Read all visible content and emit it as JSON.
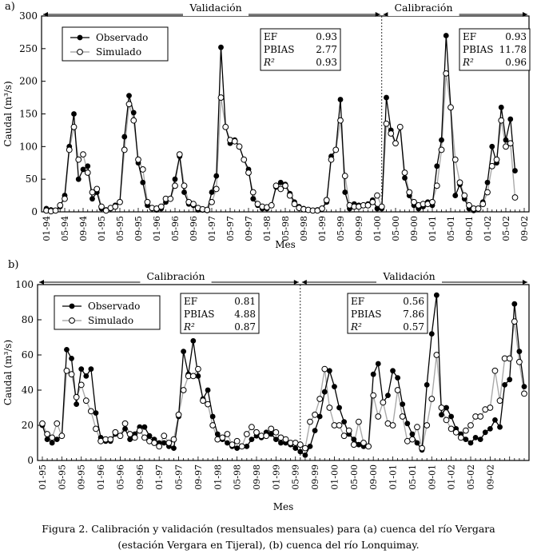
{
  "figure": {
    "caption_line1": "Figura 2. Calibración y validación (resultados mensuales) para (a) cuenca del río Vergara",
    "caption_line2": "(estación Vergara en Tijeral), (b) cuenca del río Lonquimay."
  },
  "chart_data": [
    {
      "type": "line",
      "panel_label": "a)",
      "xlabel": "Mes",
      "ylabel": "Caudal (m³/s)",
      "ylim": [
        0,
        300
      ],
      "yticks": [
        0,
        50,
        100,
        150,
        200,
        250,
        300
      ],
      "xticks": [
        "01-94",
        "05-94",
        "09-94",
        "01-95",
        "05-95",
        "09-95",
        "01-96",
        "05-96",
        "09-96",
        "01-97",
        "05-97",
        "09-97",
        "01-98",
        "05-98",
        "09-98",
        "01-99",
        "05-99",
        "09-99",
        "01-00",
        "05-00",
        "09-00",
        "01-01",
        "05-01",
        "09-01",
        "01-02",
        "05-02",
        "09-02"
      ],
      "periods": [
        {
          "label": "Validación",
          "from": 0,
          "to": 73
        },
        {
          "label": "Calibración",
          "from": 73,
          "to": 105
        }
      ],
      "stats": [
        {
          "rows": [
            [
              "EF",
              "0.93"
            ],
            [
              "PBIAS",
              "2.77"
            ],
            [
              "R²",
              "0.93"
            ]
          ],
          "anchor": "validation"
        },
        {
          "rows": [
            [
              "EF",
              "0.93"
            ],
            [
              "PBIAS",
              "11.78"
            ],
            [
              "R²",
              "0.96"
            ]
          ],
          "anchor": "calibration"
        }
      ],
      "series": [
        {
          "name": "Observado",
          "values": [
            5,
            3,
            2,
            8,
            25,
            100,
            150,
            50,
            65,
            70,
            20,
            30,
            5,
            3,
            5,
            10,
            15,
            115,
            178,
            152,
            75,
            45,
            10,
            5,
            3,
            5,
            15,
            20,
            50,
            85,
            30,
            12,
            10,
            3,
            3,
            2,
            30,
            55,
            252,
            130,
            105,
            110,
            100,
            80,
            65,
            20,
            10,
            5,
            5,
            10,
            38,
            45,
            42,
            28,
            15,
            8,
            5,
            3,
            2,
            3,
            5,
            15,
            85,
            95,
            172,
            30,
            5,
            12,
            10,
            10,
            12,
            18,
            5,
            5,
            175,
            125,
            105,
            130,
            52,
            25,
            10,
            5,
            8,
            15,
            10,
            70,
            110,
            270,
            160,
            25,
            42,
            20,
            5,
            2,
            5,
            15,
            45,
            100,
            75,
            160,
            110,
            142,
            63
          ]
        },
        {
          "name": "Simulado",
          "values": [
            2,
            1,
            2,
            10,
            20,
            95,
            130,
            80,
            88,
            60,
            30,
            35,
            8,
            2,
            6,
            8,
            15,
            95,
            165,
            140,
            80,
            65,
            15,
            6,
            5,
            8,
            20,
            20,
            40,
            88,
            40,
            15,
            12,
            6,
            4,
            3,
            15,
            35,
            175,
            130,
            110,
            108,
            100,
            80,
            60,
            30,
            12,
            8,
            7,
            10,
            40,
            35,
            40,
            25,
            12,
            6,
            4,
            3,
            2,
            2,
            5,
            18,
            80,
            95,
            140,
            55,
            10,
            8,
            8,
            10,
            10,
            15,
            25,
            8,
            135,
            120,
            105,
            130,
            60,
            30,
            15,
            10,
            12,
            12,
            15,
            40,
            95,
            212,
            160,
            80,
            45,
            25,
            10,
            5,
            5,
            12,
            30,
            70,
            80,
            140,
            100,
            105,
            22
          ]
        }
      ]
    },
    {
      "type": "line",
      "panel_label": "b)",
      "xlabel": "Mes",
      "ylabel": "Caudal (m³/s)",
      "ylim": [
        0,
        100
      ],
      "yticks": [
        0,
        20,
        40,
        60,
        80,
        100
      ],
      "xticks": [
        "01-95",
        "05-95",
        "09-95",
        "01-96",
        "05-96",
        "09-96",
        "01-97",
        "05-97",
        "09-97",
        "01-98",
        "05-98",
        "09-98",
        "01-99",
        "05-99",
        "09-99",
        "01-00",
        "05-00",
        "09-00",
        "01-01",
        "05-01",
        "09-01",
        "01-02",
        "05-02",
        "09-02"
      ],
      "periods": [
        {
          "label": "Calibración",
          "from": 0,
          "to": 53
        },
        {
          "label": "Validación",
          "from": 53,
          "to": 92
        }
      ],
      "stats": [
        {
          "rows": [
            [
              "EF",
              "0.81"
            ],
            [
              "PBIAS",
              "4.88"
            ],
            [
              "R²",
              "0.87"
            ]
          ],
          "anchor": "calibration"
        },
        {
          "rows": [
            [
              "EF",
              "0.56"
            ],
            [
              "PBIAS",
              "7.86"
            ],
            [
              "R²",
              "0.57"
            ]
          ],
          "anchor": "validation"
        }
      ],
      "series": [
        {
          "name": "Observado",
          "values": [
            20,
            12,
            10,
            12,
            14,
            63,
            58,
            32,
            52,
            48,
            52,
            27,
            13,
            11,
            11,
            15,
            14,
            18,
            12,
            15,
            19,
            19,
            14,
            12,
            10,
            10,
            8,
            7,
            25,
            62,
            49,
            68,
            48,
            35,
            40,
            25,
            15,
            12,
            10,
            8,
            7,
            8,
            8,
            12,
            14,
            13,
            16,
            15,
            12,
            10,
            10,
            9,
            7,
            5,
            3,
            8,
            17,
            25,
            39,
            51,
            42,
            30,
            22,
            15,
            12,
            9,
            8,
            8,
            49,
            55,
            33,
            37,
            51,
            47,
            32,
            21,
            15,
            10,
            6,
            43,
            72,
            94,
            26,
            30,
            25,
            18,
            15,
            12,
            10,
            13,
            12,
            16,
            18,
            23,
            19,
            43,
            46,
            89,
            62,
            42
          ]
        },
        {
          "name": "Simulado",
          "values": [
            21,
            15,
            13,
            21,
            14,
            51,
            49,
            36,
            43,
            34,
            28,
            18,
            11,
            12,
            12,
            16,
            14,
            21,
            15,
            13,
            17,
            13,
            11,
            10,
            8,
            14,
            10,
            12,
            26,
            40,
            48,
            48,
            52,
            34,
            32,
            20,
            12,
            13,
            15,
            9,
            11,
            8,
            15,
            19,
            16,
            14,
            14,
            18,
            16,
            13,
            12,
            10,
            10,
            9,
            7,
            22,
            26,
            35,
            52,
            30,
            20,
            20,
            14,
            17,
            9,
            22,
            10,
            8,
            37,
            25,
            33,
            21,
            20,
            40,
            25,
            11,
            12,
            19,
            7,
            20,
            35,
            60,
            30,
            23,
            18,
            16,
            13,
            17,
            20,
            25,
            25,
            29,
            30,
            51,
            34,
            58,
            58,
            79,
            56,
            38
          ]
        }
      ]
    }
  ]
}
